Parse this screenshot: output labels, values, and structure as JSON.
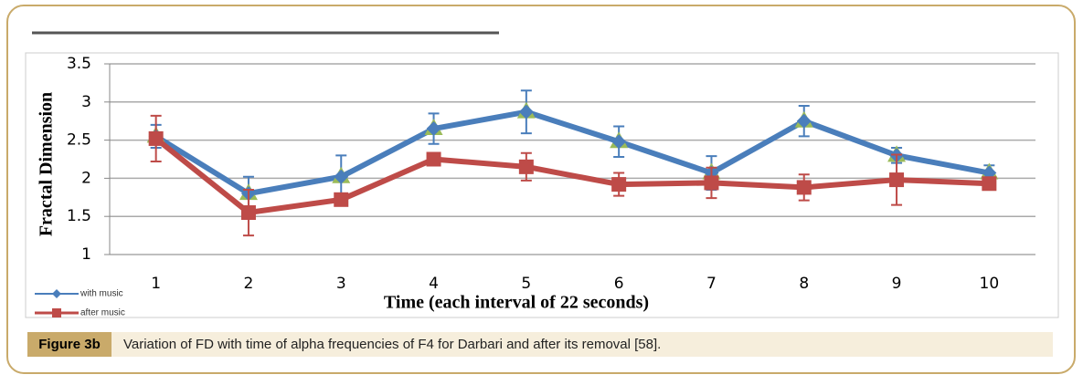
{
  "chart_data": {
    "type": "line",
    "y_label": "Fractal Dimension",
    "x_label": "Time (each interval of 22 seconds)",
    "categories": [
      "1",
      "2",
      "3",
      "4",
      "5",
      "6",
      "7",
      "8",
      "9",
      "10"
    ],
    "series": [
      {
        "name": "with music",
        "color": "#4a7ebb",
        "values": [
          2.55,
          1.8,
          2.02,
          2.65,
          2.87,
          2.48,
          2.07,
          2.75,
          2.3,
          2.07
        ],
        "errors": [
          0.15,
          0.22,
          0.28,
          0.2,
          0.28,
          0.2,
          0.22,
          0.2,
          0.1,
          0.1
        ]
      },
      {
        "name": "after music",
        "color": "#be4b48",
        "values": [
          2.52,
          1.55,
          1.72,
          2.25,
          2.15,
          1.92,
          1.94,
          1.88,
          1.98,
          1.93
        ],
        "errors": [
          0.3,
          0.3,
          0.05,
          0.05,
          0.18,
          0.15,
          0.2,
          0.17,
          0.33,
          0.05
        ]
      }
    ],
    "ylim": [
      1,
      3.5
    ],
    "yticks": [
      1,
      1.5,
      2,
      2.5,
      3,
      3.5
    ],
    "grid": true,
    "legend": "bottom-left"
  },
  "caption": {
    "label": "Figure 3b",
    "text": "Variation of FD with time of alpha frequencies of F4 for Darbari and after its removal [58]."
  }
}
